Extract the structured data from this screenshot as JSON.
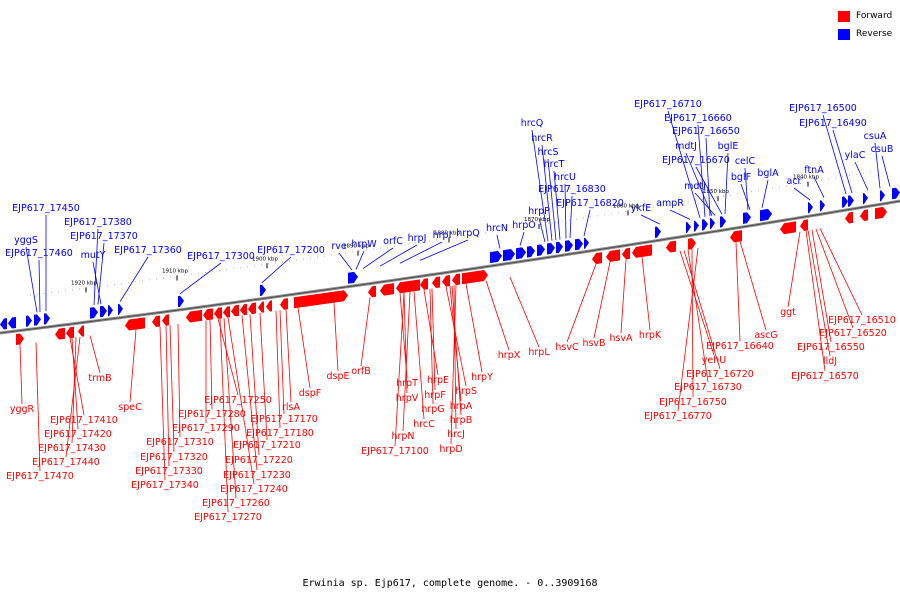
{
  "legend": {
    "forward_label": "Forward",
    "reverse_label": "Reverse",
    "forward_color": "#ff0000",
    "reverse_color": "#0000ff"
  },
  "caption": "Erwinia sp. Ejp617, complete genome. - 0..3909168",
  "ticks": [
    "1920 kbp",
    "1910 kbp",
    "1900 kbp",
    "1890 kbp",
    "1880 kbp",
    "1870 kbp",
    "1860 kbp",
    "1850 kbp",
    "1840 kbp"
  ],
  "reverse_genes": [
    "EJP617_17450",
    "yggS",
    "EJP617_17460",
    "EJP617_17380",
    "EJP617_17370",
    "mutY",
    "EJP617_17360",
    "EJP617_17300",
    "EJP617_17200",
    "rve",
    "hrpW",
    "orfC",
    "hrpJ",
    "hrpI",
    "hrpQ",
    "hrcN",
    "hrpO",
    "hrpP",
    "hrcQ",
    "hrcR",
    "hrcS",
    "hrcT",
    "hrcU",
    "EJP617_16830",
    "EJP617_16820",
    "ykfE",
    "ampR",
    "EJP617_16710",
    "EJP617_16660",
    "EJP617_16650",
    "mdtJ",
    "bglE",
    "EJP617_16670",
    "mdtI",
    "celC",
    "bglF",
    "bglA",
    "acr",
    "ftnA",
    "EJP617_16500",
    "EJP617_16490",
    "ylaC",
    "csuA",
    "csuB"
  ],
  "forward_genes": [
    "yggR",
    "EJP617_17410",
    "trmB",
    "EJP617_17420",
    "EJP617_17430",
    "EJP617_17440",
    "EJP617_17470",
    "speC",
    "EJP617_17250",
    "EJP617_17280",
    "rlsA",
    "EJP617_17170",
    "EJP617_17290",
    "EJP617_17180",
    "EJP617_17210",
    "EJP617_17310",
    "EJP617_17220",
    "EJP617_17320",
    "EJP617_17230",
    "EJP617_17330",
    "EJP617_17240",
    "EJP617_17340",
    "EJP617_17260",
    "EJP617_17270",
    "dspF",
    "dspE",
    "orfB",
    "hrpT",
    "hrpV",
    "hrpN",
    "EJP617_17100",
    "hrcC",
    "hrpE",
    "hrpF",
    "hrpG",
    "hrpS",
    "hrpA",
    "hrpB",
    "hrcJ",
    "hrpD",
    "hrpY",
    "hrpX",
    "hrpL",
    "hsvC",
    "hsvB",
    "hsvA",
    "hrpK",
    "yehU",
    "EJP617_16720",
    "EJP617_16730",
    "EJP617_16750",
    "EJP617_16770",
    "EJP617_16640",
    "ascG",
    "ggt",
    "EJP617_16510",
    "EJP617_16520",
    "EJP617_16550",
    "lldJ",
    "EJP617_16570"
  ]
}
